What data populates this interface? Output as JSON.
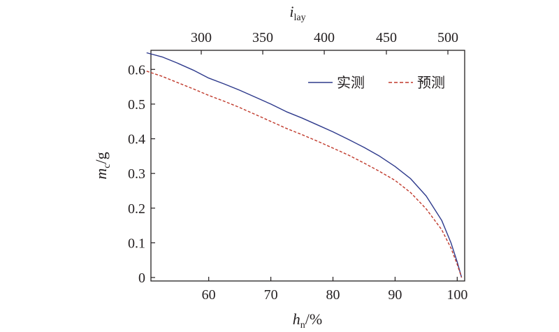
{
  "chart_data": {
    "type": "line",
    "x": [
      50.0,
      52.5,
      55.0,
      57.5,
      60.0,
      62.5,
      65.0,
      67.5,
      70.0,
      72.5,
      75.0,
      77.5,
      80.0,
      82.5,
      85.0,
      87.5,
      90.0,
      92.5,
      95.0,
      97.5,
      99.0,
      100.0,
      100.7
    ],
    "xlim": [
      50.7,
      101.2
    ],
    "x_ticks": [
      "60",
      "70",
      "80",
      "90",
      "100"
    ],
    "x_tick_values": [
      60,
      70,
      80,
      90,
      100
    ],
    "xlabel": {
      "main": "h",
      "sub": "n",
      "suffix": "/%"
    },
    "ylim": [
      -0.01,
      0.655
    ],
    "y_ticks": [
      "0",
      "0.1",
      "0.2",
      "0.3",
      "0.4",
      "0.5",
      "0.6"
    ],
    "y_tick_values": [
      0,
      0.1,
      0.2,
      0.3,
      0.4,
      0.5,
      0.6
    ],
    "ylabel": {
      "main": "m",
      "sub": "c",
      "suffix": "/g"
    },
    "top_axis": {
      "ticks": [
        "300",
        "350",
        "400",
        "450",
        "500"
      ],
      "tick_positions_x": [
        58.8,
        68.7,
        78.6,
        88.6,
        98.5
      ],
      "label": {
        "main": "i",
        "sub": "lay"
      }
    },
    "series": [
      {
        "name": "实测",
        "color": "#2e3a8c",
        "style": "solid",
        "values": [
          0.648,
          0.636,
          0.618,
          0.598,
          0.575,
          0.558,
          0.54,
          0.52,
          0.5,
          0.478,
          0.46,
          0.44,
          0.42,
          0.398,
          0.375,
          0.35,
          0.32,
          0.285,
          0.235,
          0.165,
          0.1,
          0.045,
          0.0
        ]
      },
      {
        "name": "预测",
        "color": "#c0392b",
        "style": "dashed",
        "values": [
          0.595,
          0.58,
          0.562,
          0.544,
          0.525,
          0.508,
          0.49,
          0.47,
          0.45,
          0.43,
          0.412,
          0.393,
          0.373,
          0.353,
          0.33,
          0.306,
          0.28,
          0.245,
          0.198,
          0.138,
          0.085,
          0.038,
          0.0
        ]
      }
    ],
    "legend_position": "top-right",
    "grid": false
  }
}
